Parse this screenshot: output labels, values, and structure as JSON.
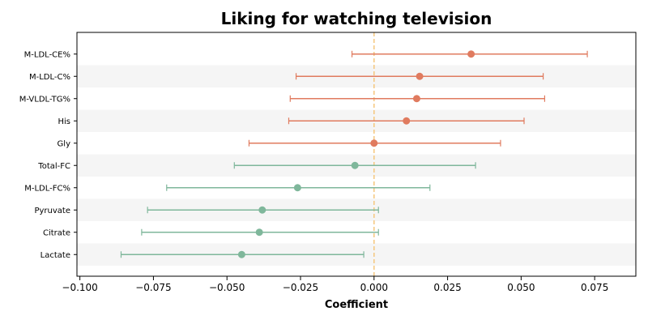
{
  "chart_data": {
    "type": "forest",
    "title": "Liking for watching television",
    "xlabel": "Coefficient",
    "ylabel": "",
    "xlim": [
      -0.101,
      0.089
    ],
    "xticks": [
      -0.1,
      -0.075,
      -0.05,
      -0.025,
      0.0,
      0.025,
      0.05,
      0.075
    ],
    "xtick_labels": [
      "−0.100",
      "−0.075",
      "−0.050",
      "−0.025",
      "0.000",
      "0.025",
      "0.050",
      "0.075"
    ],
    "reference_line": 0.0,
    "reference_line_color": "#f5c77e",
    "stripe_color": "#f5f5f5",
    "positive_color": "#e07b5f",
    "negative_color": "#7fb79b",
    "items": [
      {
        "label": "M-LDL-CE%",
        "estimate": 0.033,
        "ci_low": -0.0075,
        "ci_high": 0.0725
      },
      {
        "label": "M-LDL-C%",
        "estimate": 0.0155,
        "ci_low": -0.0265,
        "ci_high": 0.0575
      },
      {
        "label": "M-VLDL-TG%",
        "estimate": 0.0145,
        "ci_low": -0.0285,
        "ci_high": 0.058
      },
      {
        "label": "His",
        "estimate": 0.011,
        "ci_low": -0.029,
        "ci_high": 0.051
      },
      {
        "label": "Gly",
        "estimate": 0.0,
        "ci_low": -0.0425,
        "ci_high": 0.043
      },
      {
        "label": "Total-FC",
        "estimate": -0.0065,
        "ci_low": -0.0475,
        "ci_high": 0.0345
      },
      {
        "label": "M-LDL-FC%",
        "estimate": -0.026,
        "ci_low": -0.0705,
        "ci_high": 0.019
      },
      {
        "label": "Pyruvate",
        "estimate": -0.038,
        "ci_low": -0.077,
        "ci_high": 0.0015
      },
      {
        "label": "Citrate",
        "estimate": -0.039,
        "ci_low": -0.079,
        "ci_high": 0.0015
      },
      {
        "label": "Lactate",
        "estimate": -0.045,
        "ci_low": -0.086,
        "ci_high": -0.0035
      }
    ]
  }
}
